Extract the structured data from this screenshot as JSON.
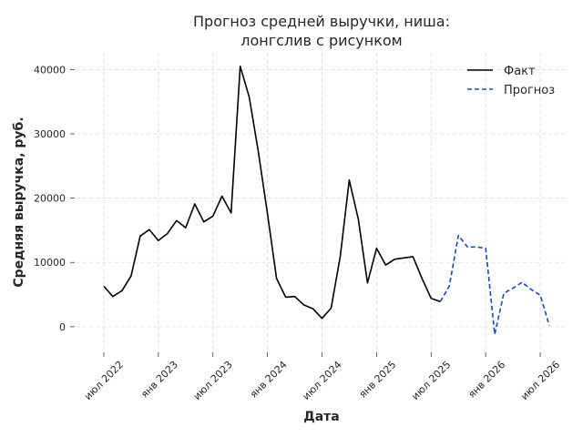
{
  "chart_data": {
    "type": "line",
    "title_lines": [
      "Прогноз средней выручки, ниша:",
      "лонгслив с рисунком"
    ],
    "xlabel": "Дата",
    "ylabel": "Средняя выручка, руб.",
    "x_ticks": [
      {
        "date": "2022-07",
        "label": "июл 2022"
      },
      {
        "date": "2023-01",
        "label": "янв 2023"
      },
      {
        "date": "2023-07",
        "label": "июл 2023"
      },
      {
        "date": "2024-01",
        "label": "янв 2024"
      },
      {
        "date": "2024-07",
        "label": "июл 2024"
      },
      {
        "date": "2025-01",
        "label": "янв 2025"
      },
      {
        "date": "2025-07",
        "label": "июл 2025"
      },
      {
        "date": "2026-01",
        "label": "янв 2026"
      },
      {
        "date": "2026-07",
        "label": "июл 2026"
      }
    ],
    "y_ticks": [
      0,
      10000,
      20000,
      30000,
      40000
    ],
    "y_tick_labels": [
      "0",
      "10000",
      "20000",
      "30000",
      "40000"
    ],
    "xlim": [
      "2022-04",
      "2026-10"
    ],
    "ylim": [
      -3700,
      42600
    ],
    "grid": true,
    "legend_position": "top-right",
    "series": [
      {
        "name": "Факт",
        "color": "#000000",
        "dash": false,
        "points": [
          [
            "2022-07",
            6300
          ],
          [
            "2022-08",
            4700
          ],
          [
            "2022-09",
            5600
          ],
          [
            "2022-10",
            7900
          ],
          [
            "2022-11",
            14100
          ],
          [
            "2022-12",
            15100
          ],
          [
            "2023-01",
            13400
          ],
          [
            "2023-02",
            14500
          ],
          [
            "2023-03",
            16500
          ],
          [
            "2023-04",
            15400
          ],
          [
            "2023-05",
            19100
          ],
          [
            "2023-06",
            16300
          ],
          [
            "2023-07",
            17200
          ],
          [
            "2023-08",
            20300
          ],
          [
            "2023-09",
            17700
          ],
          [
            "2023-10",
            40500
          ],
          [
            "2023-11",
            35700
          ],
          [
            "2023-12",
            27200
          ],
          [
            "2024-01",
            17600
          ],
          [
            "2024-02",
            7500
          ],
          [
            "2024-03",
            4600
          ],
          [
            "2024-04",
            4700
          ],
          [
            "2024-05",
            3400
          ],
          [
            "2024-06",
            2800
          ],
          [
            "2024-07",
            1300
          ],
          [
            "2024-08",
            2900
          ],
          [
            "2024-09",
            10900
          ],
          [
            "2024-10",
            22800
          ],
          [
            "2024-11",
            16700
          ],
          [
            "2024-12",
            6800
          ],
          [
            "2025-01",
            12200
          ],
          [
            "2025-02",
            9600
          ],
          [
            "2025-03",
            10500
          ],
          [
            "2025-04",
            10700
          ],
          [
            "2025-05",
            10900
          ],
          [
            "2025-06",
            7500
          ],
          [
            "2025-07",
            4400
          ],
          [
            "2025-08",
            3900
          ]
        ]
      },
      {
        "name": "Прогноз",
        "color": "#1048cc",
        "dash": true,
        "points": [
          [
            "2025-08",
            3900
          ],
          [
            "2025-09",
            6300
          ],
          [
            "2025-10",
            14200
          ],
          [
            "2025-11",
            12400
          ],
          [
            "2025-12",
            12400
          ],
          [
            "2026-01",
            12200
          ],
          [
            "2026-02",
            -1200
          ],
          [
            "2026-03",
            5200
          ],
          [
            "2026-04",
            6000
          ],
          [
            "2026-05",
            6900
          ],
          [
            "2026-06",
            5800
          ],
          [
            "2026-07",
            4900
          ],
          [
            "2026-08",
            200
          ]
        ]
      }
    ]
  }
}
